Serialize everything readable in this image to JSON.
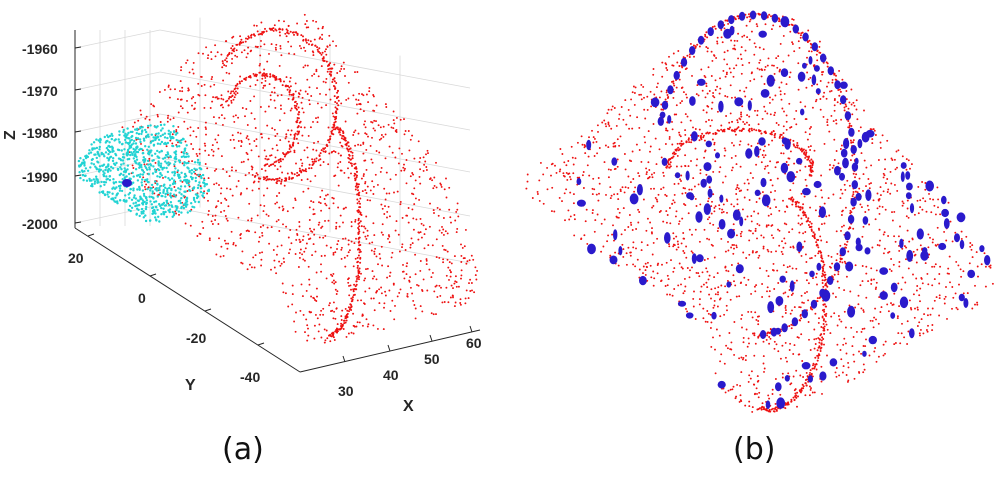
{
  "panels": [
    {
      "caption": "(a)"
    },
    {
      "caption": "(b)"
    }
  ],
  "colors": {
    "surface_points": "#ee1111",
    "selected_region": "#22d3d3",
    "keypoints": "#2a1acc",
    "grid": "#d9d9d9",
    "axis": "#262626"
  },
  "chart_data": [
    {
      "type": "scatter",
      "dimensions": 3,
      "title": "",
      "xlabel": "X",
      "ylabel": "Y",
      "zlabel": "Z",
      "x_ticks": [
        "30",
        "40",
        "50",
        "60"
      ],
      "y_ticks": [
        "20",
        "0",
        "-20",
        "-40"
      ],
      "z_ticks": [
        "-1960",
        "-1970",
        "-1980",
        "-1990",
        "-2000"
      ],
      "xlim": [
        25,
        65
      ],
      "ylim": [
        -45,
        25
      ],
      "zlim": [
        -2000,
        -1955
      ],
      "grid": true,
      "series": [
        {
          "color": "red",
          "marker": "point"
        },
        {
          "color": "cyan",
          "marker": "point"
        },
        {
          "color": "blue",
          "marker": "filled-circle"
        }
      ]
    },
    {
      "type": "scatter",
      "dimensions": 3,
      "axes_visible": false,
      "series": [
        {
          "color": "red",
          "marker": "point"
        },
        {
          "color": "blue",
          "marker": "ellipse"
        }
      ]
    }
  ]
}
